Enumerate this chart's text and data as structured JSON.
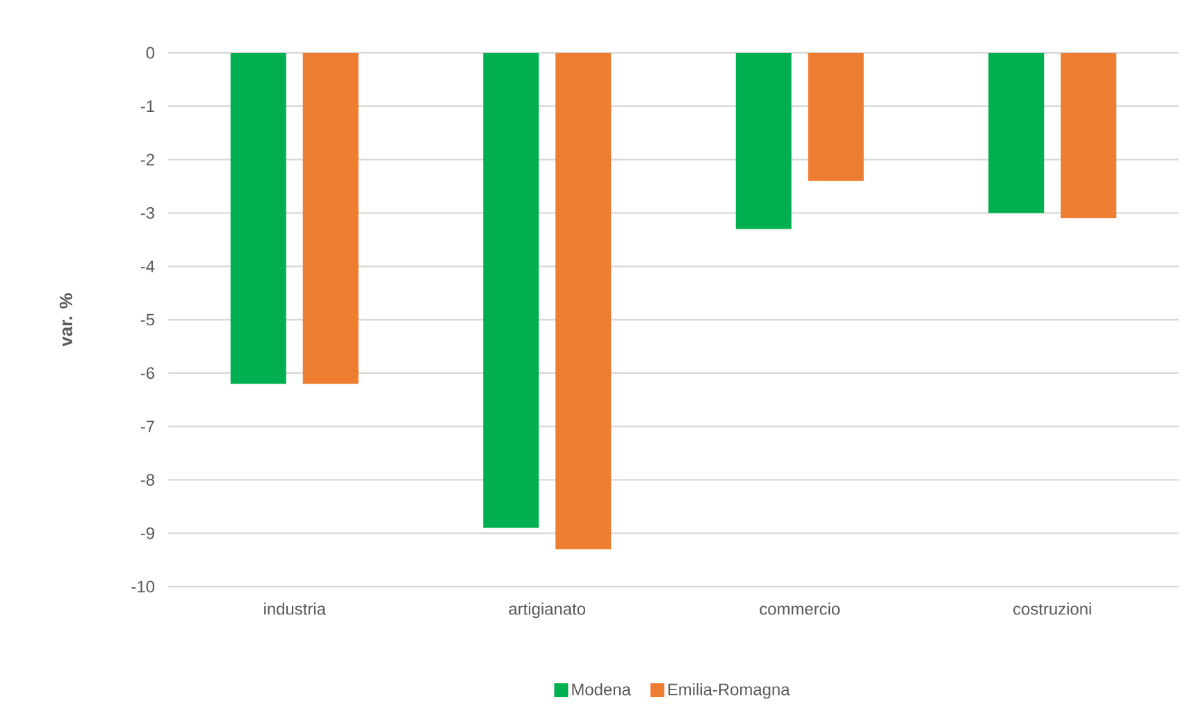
{
  "chart_data": {
    "type": "bar",
    "ylabel": "var. %",
    "categories": [
      "industria",
      "artigianato",
      "commercio",
      "costruzioni"
    ],
    "series": [
      {
        "name": "Modena",
        "color": "#00b050",
        "values": [
          -6.2,
          -8.9,
          -3.3,
          -3.0
        ]
      },
      {
        "name": "Emilia-Romagna",
        "color": "#ed7d31",
        "values": [
          -6.2,
          -9.3,
          -2.4,
          -3.1
        ]
      }
    ],
    "ylim": [
      -10,
      0
    ],
    "yticks": [
      0,
      -1,
      -2,
      -3,
      -4,
      -5,
      -6,
      -7,
      -8,
      -9,
      -10
    ],
    "grid": "y",
    "legend": "bottom"
  }
}
